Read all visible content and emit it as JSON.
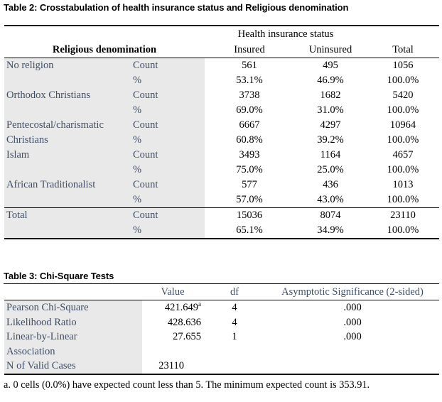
{
  "colors": {
    "label_text": "#3F4E66",
    "row_shade": "#E9E9E9",
    "rule": "#000000",
    "value_text": "#000000"
  },
  "table2": {
    "title": "Table 2: Crosstabulation of health insurance status and Religious denomination",
    "span_header": "Health insurance status",
    "row_dimension_header": "Religious denomination",
    "col_headers": [
      "Insured",
      "Uninsured",
      "Total"
    ],
    "measure_labels": [
      "Count",
      "%"
    ],
    "rows": [
      {
        "label_line1": "No religion",
        "label_line2": "",
        "count": [
          "561",
          "495",
          "1056"
        ],
        "pct": [
          "53.1%",
          "46.9%",
          "100.0%"
        ]
      },
      {
        "label_line1": "Orthodox Christians",
        "label_line2": "",
        "count": [
          "3738",
          "1682",
          "5420"
        ],
        "pct": [
          "69.0%",
          "31.0%",
          "100.0%"
        ]
      },
      {
        "label_line1": "Pentecostal/charismatic",
        "label_line2": "Christians",
        "count": [
          "6667",
          "4297",
          "10964"
        ],
        "pct": [
          "60.8%",
          "39.2%",
          "100.0%"
        ]
      },
      {
        "label_line1": "Islam",
        "label_line2": "",
        "count": [
          "3493",
          "1164",
          "4657"
        ],
        "pct": [
          "75.0%",
          "25.0%",
          "100.0%"
        ]
      },
      {
        "label_line1": "African Traditionalist",
        "label_line2": "",
        "count": [
          "577",
          "436",
          "1013"
        ],
        "pct": [
          "57.0%",
          "43.0%",
          "100.0%"
        ]
      }
    ],
    "total_row": {
      "label_line1": "Total",
      "label_line2": "",
      "count": [
        "15036",
        "8074",
        "23110"
      ],
      "pct": [
        "65.1%",
        "34.9%",
        "100.0%"
      ]
    }
  },
  "table3": {
    "title": "Table 3: Chi-Square Tests",
    "col_headers": [
      "Value",
      "df",
      "Asymptotic Significance (2-sided)"
    ],
    "rows": [
      {
        "label": "Pearson Chi-Square",
        "label2": "",
        "value": "421.649",
        "value_sup": "a",
        "df": "4",
        "sig": ".000"
      },
      {
        "label": "Likelihood Ratio",
        "label2": "",
        "value": "428.636",
        "value_sup": "",
        "df": "4",
        "sig": ".000"
      },
      {
        "label": "Linear-by-Linear",
        "label2": "Association",
        "value": "27.655",
        "value_sup": "",
        "df": "1",
        "sig": ".000"
      },
      {
        "label": "N of Valid Cases",
        "label2": "",
        "value": "23110",
        "value_sup": "",
        "df": "",
        "sig": ""
      }
    ],
    "footnote": "a. 0 cells (0.0%) have expected count less than 5. The minimum expected count is 353.91."
  }
}
